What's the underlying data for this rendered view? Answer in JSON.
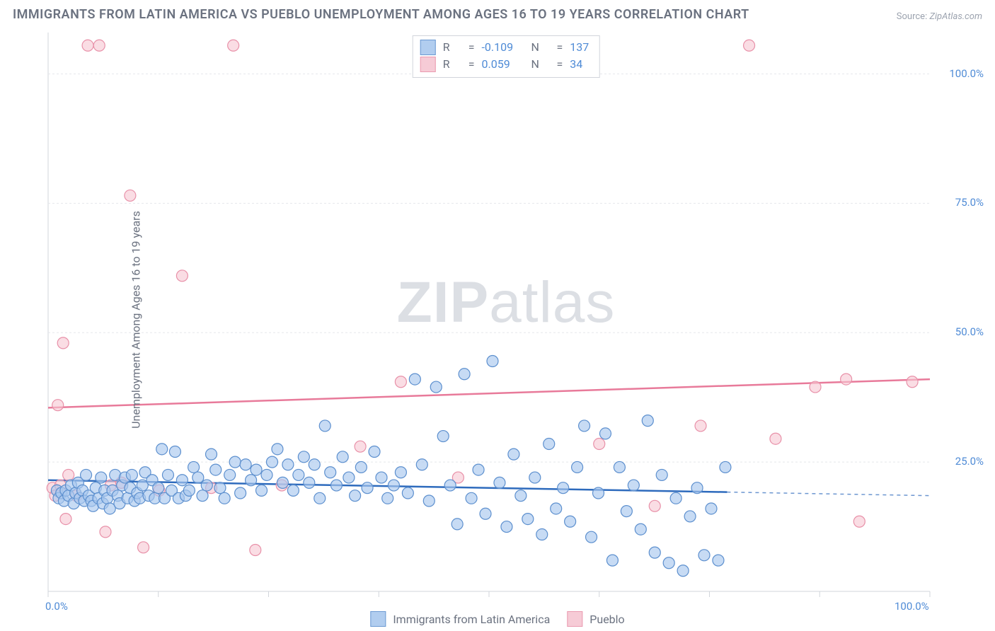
{
  "title": "IMMIGRANTS FROM LATIN AMERICA VS PUEBLO UNEMPLOYMENT AMONG AGES 16 TO 19 YEARS CORRELATION CHART",
  "source_prefix": "Source: ",
  "source_name": "ZipAtlas.com",
  "watermark_a": "ZIP",
  "watermark_b": "atlas",
  "y_axis_label": "Unemployment Among Ages 16 to 19 years",
  "chart": {
    "type": "scatter",
    "plot_bg": "#ffffff",
    "grid_color": "#e5e7eb",
    "grid_dash": "3,3",
    "axis_line_color": "#d1d5db",
    "xlim": [
      0,
      100
    ],
    "ylim": [
      0,
      108
    ],
    "x_tick_positions": [
      0,
      12.5,
      25,
      37.5,
      50,
      62.5,
      75,
      87.5,
      100
    ],
    "x_tick_labels_visible": {
      "0": "0.0%",
      "100": "100.0%"
    },
    "y_grid_positions": [
      25,
      50,
      75,
      100
    ],
    "y_tick_labels": {
      "25": "25.0%",
      "50": "50.0%",
      "75": "75.0%",
      "100": "100.0%"
    },
    "series": {
      "blue": {
        "label": "Immigrants from Latin America",
        "fill": "#a9c8ee",
        "stroke": "#5c8fce",
        "fill_opacity": 0.65,
        "radius": 8,
        "R": "-0.109",
        "N": "137",
        "trend": {
          "color": "#2e6bbd",
          "width": 2.5,
          "y_at_x0": 21.5,
          "y_at_x100": 18.5,
          "solid_until_x": 77
        },
        "points": [
          [
            1,
            19.5
          ],
          [
            1.2,
            18
          ],
          [
            1.5,
            19
          ],
          [
            1.8,
            17.5
          ],
          [
            2,
            19.5
          ],
          [
            2.3,
            18.5
          ],
          [
            2.6,
            20.5
          ],
          [
            2.9,
            17
          ],
          [
            3.1,
            19
          ],
          [
            3.4,
            21
          ],
          [
            3.6,
            18
          ],
          [
            3.9,
            19.5
          ],
          [
            4.1,
            17.5
          ],
          [
            4.3,
            22.5
          ],
          [
            4.6,
            18.5
          ],
          [
            4.9,
            17.5
          ],
          [
            5.1,
            16.5
          ],
          [
            5.4,
            20
          ],
          [
            5.7,
            18
          ],
          [
            6,
            22
          ],
          [
            6.2,
            17
          ],
          [
            6.4,
            19.5
          ],
          [
            6.7,
            18
          ],
          [
            7,
            16
          ],
          [
            7.3,
            19.5
          ],
          [
            7.6,
            22.5
          ],
          [
            7.9,
            18.5
          ],
          [
            8.1,
            17
          ],
          [
            8.4,
            20.5
          ],
          [
            8.7,
            22
          ],
          [
            9,
            18
          ],
          [
            9.3,
            20
          ],
          [
            9.5,
            22.5
          ],
          [
            9.8,
            17.5
          ],
          [
            10.1,
            19
          ],
          [
            10.4,
            18
          ],
          [
            10.7,
            20.5
          ],
          [
            11,
            23
          ],
          [
            11.4,
            18.5
          ],
          [
            11.8,
            21.5
          ],
          [
            12.1,
            18
          ],
          [
            12.5,
            20
          ],
          [
            12.9,
            27.5
          ],
          [
            13.2,
            18
          ],
          [
            13.6,
            22.5
          ],
          [
            14,
            19.5
          ],
          [
            14.4,
            27
          ],
          [
            14.8,
            18
          ],
          [
            15.2,
            21.5
          ],
          [
            15.6,
            18.5
          ],
          [
            16,
            19.5
          ],
          [
            16.5,
            24
          ],
          [
            17,
            22
          ],
          [
            17.5,
            18.5
          ],
          [
            18,
            20.5
          ],
          [
            18.5,
            26.5
          ],
          [
            19,
            23.5
          ],
          [
            19.5,
            20
          ],
          [
            20,
            18
          ],
          [
            20.6,
            22.5
          ],
          [
            21.2,
            25
          ],
          [
            21.8,
            19
          ],
          [
            22.4,
            24.5
          ],
          [
            23,
            21.5
          ],
          [
            23.6,
            23.5
          ],
          [
            24.2,
            19.5
          ],
          [
            24.8,
            22.5
          ],
          [
            25.4,
            25
          ],
          [
            26,
            27.5
          ],
          [
            26.6,
            21
          ],
          [
            27.2,
            24.5
          ],
          [
            27.8,
            19.5
          ],
          [
            28.4,
            22.5
          ],
          [
            29,
            26
          ],
          [
            29.6,
            21
          ],
          [
            30.2,
            24.5
          ],
          [
            30.8,
            18
          ],
          [
            31.4,
            32
          ],
          [
            32,
            23
          ],
          [
            32.7,
            20.5
          ],
          [
            33.4,
            26
          ],
          [
            34.1,
            22
          ],
          [
            34.8,
            18.5
          ],
          [
            35.5,
            24
          ],
          [
            36.2,
            20
          ],
          [
            37,
            27
          ],
          [
            37.8,
            22
          ],
          [
            38.5,
            18
          ],
          [
            39.2,
            20.5
          ],
          [
            40,
            23
          ],
          [
            40.8,
            19
          ],
          [
            41.6,
            41
          ],
          [
            42.4,
            24.5
          ],
          [
            43.2,
            17.5
          ],
          [
            44,
            39.5
          ],
          [
            44.8,
            30
          ],
          [
            45.6,
            20.5
          ],
          [
            46.4,
            13
          ],
          [
            47.2,
            42
          ],
          [
            48,
            18
          ],
          [
            48.8,
            23.5
          ],
          [
            49.6,
            15
          ],
          [
            50.4,
            44.5
          ],
          [
            51.2,
            21
          ],
          [
            52,
            12.5
          ],
          [
            52.8,
            26.5
          ],
          [
            53.6,
            18.5
          ],
          [
            54.4,
            14
          ],
          [
            55.2,
            22
          ],
          [
            56,
            11
          ],
          [
            56.8,
            28.5
          ],
          [
            57.6,
            16
          ],
          [
            58.4,
            20
          ],
          [
            59.2,
            13.5
          ],
          [
            60,
            24
          ],
          [
            60.8,
            32
          ],
          [
            61.6,
            10.5
          ],
          [
            62.4,
            19
          ],
          [
            63.2,
            30.5
          ],
          [
            64,
            6
          ],
          [
            64.8,
            24
          ],
          [
            65.6,
            15.5
          ],
          [
            66.4,
            20.5
          ],
          [
            67.2,
            12
          ],
          [
            68,
            33
          ],
          [
            68.8,
            7.5
          ],
          [
            69.6,
            22.5
          ],
          [
            70.4,
            5.5
          ],
          [
            71.2,
            18
          ],
          [
            72,
            4
          ],
          [
            72.8,
            14.5
          ],
          [
            73.6,
            20
          ],
          [
            74.4,
            7
          ],
          [
            75.2,
            16
          ],
          [
            76,
            6
          ],
          [
            76.8,
            24
          ]
        ]
      },
      "pink": {
        "label": "Pueblo",
        "fill": "#f6c6d2",
        "stroke": "#e890a8",
        "fill_opacity": 0.6,
        "radius": 8,
        "R": "0.059",
        "N": "34",
        "trend": {
          "color": "#e87a9a",
          "width": 2.5,
          "y_at_x0": 35.5,
          "y_at_x100": 41
        },
        "points": [
          [
            0.5,
            20
          ],
          [
            0.8,
            18.5
          ],
          [
            1.1,
            36
          ],
          [
            1.4,
            20.5
          ],
          [
            1.7,
            48
          ],
          [
            2,
            14
          ],
          [
            2.3,
            22.5
          ],
          [
            3.2,
            18.5
          ],
          [
            4.5,
            105.5
          ],
          [
            5.8,
            105.5
          ],
          [
            6.5,
            11.5
          ],
          [
            7.1,
            20.5
          ],
          [
            8.3,
            21
          ],
          [
            9.3,
            76.5
          ],
          [
            10.8,
            8.5
          ],
          [
            12.6,
            19.5
          ],
          [
            15.2,
            61
          ],
          [
            18.5,
            20
          ],
          [
            21,
            105.5
          ],
          [
            23.5,
            8
          ],
          [
            26.5,
            20.5
          ],
          [
            35.4,
            28
          ],
          [
            40,
            40.5
          ],
          [
            46.5,
            22
          ],
          [
            56,
            105.5
          ],
          [
            62.5,
            28.5
          ],
          [
            68.8,
            16.5
          ],
          [
            74,
            32
          ],
          [
            79.5,
            105.5
          ],
          [
            82.5,
            29.5
          ],
          [
            87,
            39.5
          ],
          [
            90.5,
            41
          ],
          [
            92,
            13.5
          ],
          [
            98,
            40.5
          ]
        ]
      }
    }
  },
  "legend_box": {
    "r_label": "R",
    "n_label": "N"
  },
  "bottom_legend": {
    "blue_label": "Immigrants from Latin America",
    "pink_label": "Pueblo"
  }
}
